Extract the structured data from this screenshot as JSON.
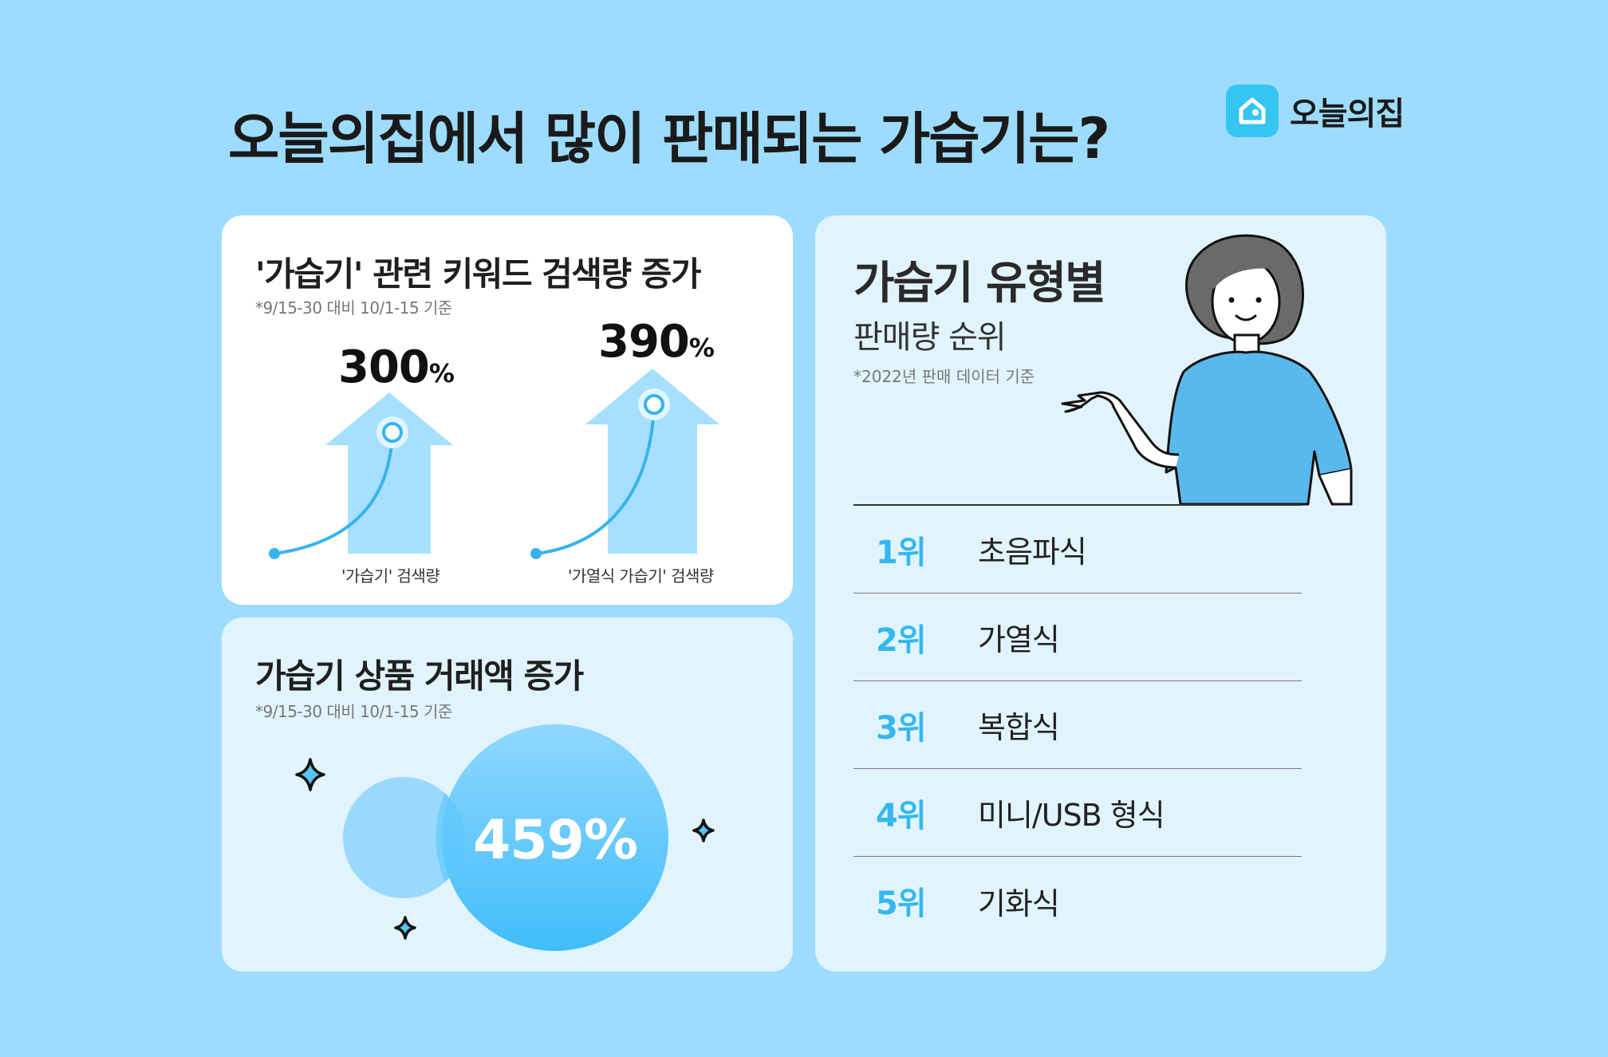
{
  "title": "오늘의집에서 많이 판매되는 가습기는?",
  "brand": {
    "name": "오늘의집",
    "logo_icon": "house-icon",
    "color": "#35c5f0"
  },
  "search_card": {
    "title": "'가습기' 관련 키워드 검색량 증가",
    "note": "*9/15-30 대비 10/1-15 기준",
    "items": [
      {
        "value": "300",
        "unit": "%",
        "label": "'가습기' 검색량"
      },
      {
        "value": "390",
        "unit": "%",
        "label": "'가열식 가습기' 검색량"
      }
    ]
  },
  "sales_card": {
    "title": "가습기 상품 거래액 증가",
    "note": "*9/15-30 대비 10/1-15 기준",
    "value": "459%"
  },
  "rank_card": {
    "title": "가습기 유형별",
    "subtitle": "판매량 순위",
    "note": "*2022년 판매 데이터 기준",
    "rows": [
      {
        "pos": "1위",
        "type": "초음파식"
      },
      {
        "pos": "2위",
        "type": "가열식"
      },
      {
        "pos": "3위",
        "type": "복합식"
      },
      {
        "pos": "4위",
        "type": "미니/USB 형식"
      },
      {
        "pos": "5위",
        "type": "기화식"
      }
    ]
  },
  "colors": {
    "background": "#9ddcff",
    "accent": "#35b7f0",
    "card_light": "#e1f4fd"
  }
}
